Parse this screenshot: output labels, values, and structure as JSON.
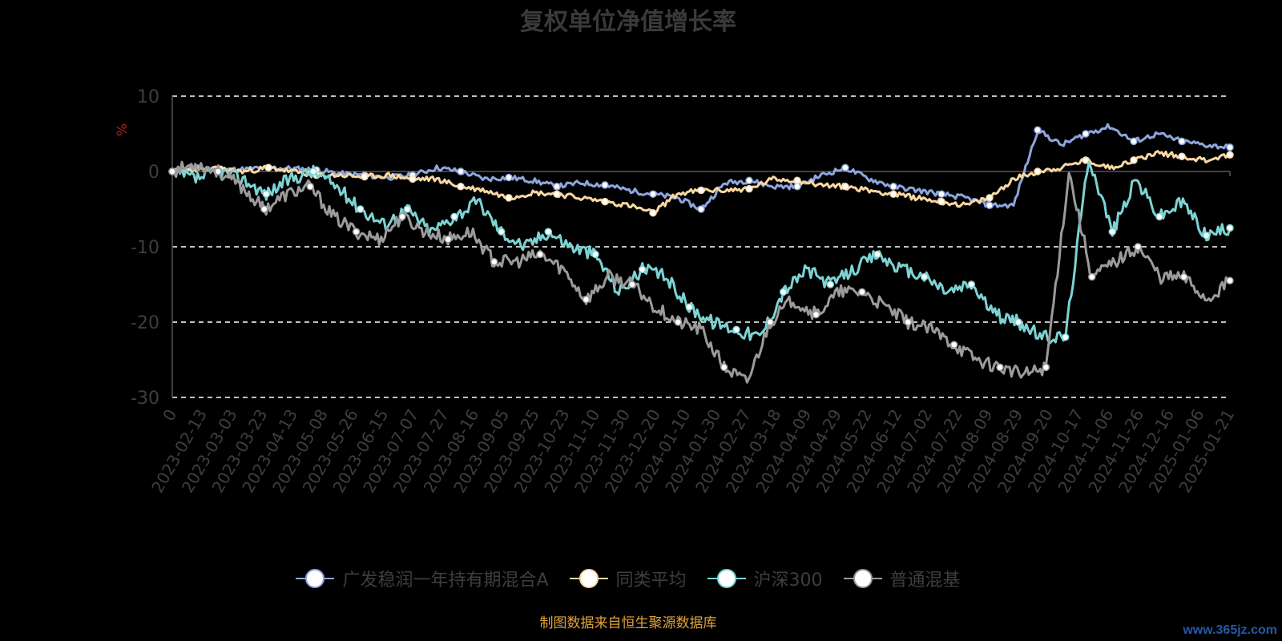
{
  "chart_data": {
    "type": "line",
    "title": "复权单位净值增长率",
    "ylabel": "%",
    "ylim": [
      -30,
      10
    ],
    "yticks": [
      10,
      0,
      -10,
      -20,
      -30
    ],
    "grid": true,
    "legend_position": "bottom",
    "x_tick_labels": [
      "0",
      "2023-02-13",
      "2023-03-03",
      "2023-03-23",
      "2023-04-13",
      "2023-05-08",
      "2023-05-26",
      "2023-06-15",
      "2023-07-07",
      "2023-07-27",
      "2023-08-16",
      "2023-09-05",
      "2023-09-25",
      "2023-10-23",
      "2023-11-10",
      "2023-11-30",
      "2023-12-20",
      "2024-01-10",
      "2024-01-30",
      "2024-02-27",
      "2024-03-18",
      "2024-04-09",
      "2024-04-29",
      "2024-05-22",
      "2024-06-12",
      "2024-07-02",
      "2024-07-22",
      "2024-08-09",
      "2024-08-29",
      "2024-09-20",
      "2024-10-17",
      "2024-11-06",
      "2024-11-26",
      "2024-12-16",
      "2025-01-06",
      "2025-01-21"
    ],
    "series": [
      {
        "name": "广发稳润一年持有期混合A",
        "color": "#8ea6dd",
        "values": [
          0,
          0.5,
          0.2,
          0.3,
          0.5,
          0.4,
          0.2,
          -0.3,
          -0.5,
          -0.8,
          -0.5,
          0.5,
          0,
          -1,
          -0.8,
          -1.2,
          -2,
          -1.5,
          -1.8,
          -2.5,
          -3,
          -3.5,
          -5,
          -1.5,
          -1.2,
          -2,
          -2,
          -0.5,
          0.5,
          -1,
          -2,
          -2.5,
          -3,
          -3.5,
          -4.5,
          -4.5,
          5.5,
          3.5,
          5,
          6,
          4,
          5,
          4,
          3.5,
          3.2
        ]
      },
      {
        "name": "同类平均",
        "color": "#f8d7a2",
        "values": [
          0,
          0.3,
          0.3,
          0,
          0.5,
          0,
          -0.5,
          -0.5,
          -0.7,
          -0.5,
          -1,
          -1,
          -2,
          -2.5,
          -3.5,
          -2.8,
          -3,
          -3.5,
          -4,
          -4.5,
          -5.5,
          -3,
          -2.5,
          -2.5,
          -2.3,
          -1,
          -1.2,
          -1.8,
          -2,
          -2.5,
          -3,
          -3.5,
          -4,
          -4.5,
          -3.5,
          -1,
          0,
          0.5,
          1.5,
          0.5,
          1.5,
          2.5,
          2,
          1.5,
          2.2
        ]
      },
      {
        "name": "沪深300",
        "color": "#7dd3d3",
        "values": [
          0,
          -1,
          0,
          -1,
          -3,
          -1,
          0,
          -2,
          -5,
          -7,
          -5,
          -8,
          -6,
          -4,
          -8,
          -10,
          -8,
          -10,
          -11,
          -16,
          -13,
          -14,
          -18,
          -20,
          -21,
          -22,
          -16,
          -13,
          -15,
          -13,
          -11,
          -13,
          -14,
          -16,
          -15,
          -19,
          -20,
          -22,
          -22,
          2,
          -8,
          -1,
          -6,
          -4,
          -8.5,
          -7.5
        ]
      },
      {
        "name": "普通混基",
        "color": "#9b9b9b",
        "values": [
          0,
          1,
          0,
          -2,
          -5,
          -3,
          -2,
          -6,
          -8,
          -9,
          -6,
          -8,
          -9,
          -8,
          -12,
          -12,
          -11,
          -13,
          -17,
          -14,
          -15,
          -18,
          -20,
          -21,
          -26,
          -28,
          -20,
          -17,
          -19,
          -16,
          -16,
          -18,
          -20,
          -21,
          -23,
          -25,
          -26,
          -27,
          -26,
          0,
          -14,
          -12,
          -10,
          -14,
          -14,
          -17,
          -14.5
        ]
      }
    ]
  },
  "source_note": "制图数据来自恒生聚源数据库",
  "watermark": "www.365jz.com"
}
